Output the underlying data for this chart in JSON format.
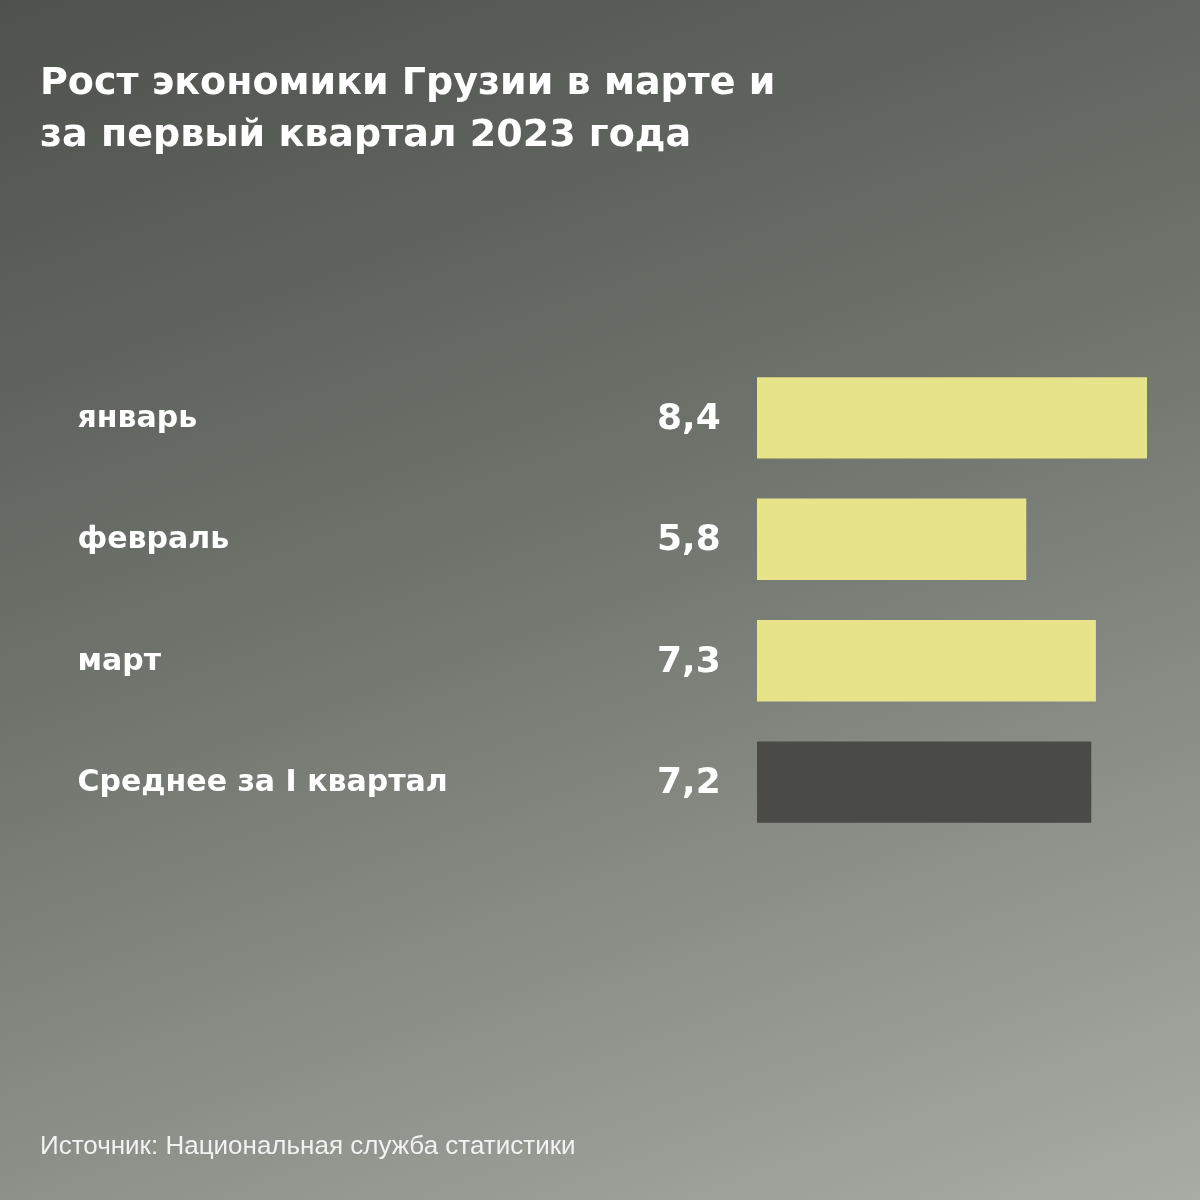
{
  "chart_data": {
    "type": "bar",
    "orientation": "horizontal",
    "title": "Рост экономики Грузии в марте и за первый квартал 2023 года",
    "categories": [
      "январь",
      "февраль",
      "март",
      "Среднее за I квартал"
    ],
    "values": [
      8.4,
      5.8,
      7.3,
      7.2
    ],
    "colors": [
      "#e6e38a",
      "#e6e38a",
      "#e6e38a",
      "#4a4a47"
    ],
    "value_labels": [
      "8,4",
      "5,8",
      "7,3",
      "7,2"
    ],
    "annotations": [
      "Источник: Национальная служба статистики"
    ]
  }
}
